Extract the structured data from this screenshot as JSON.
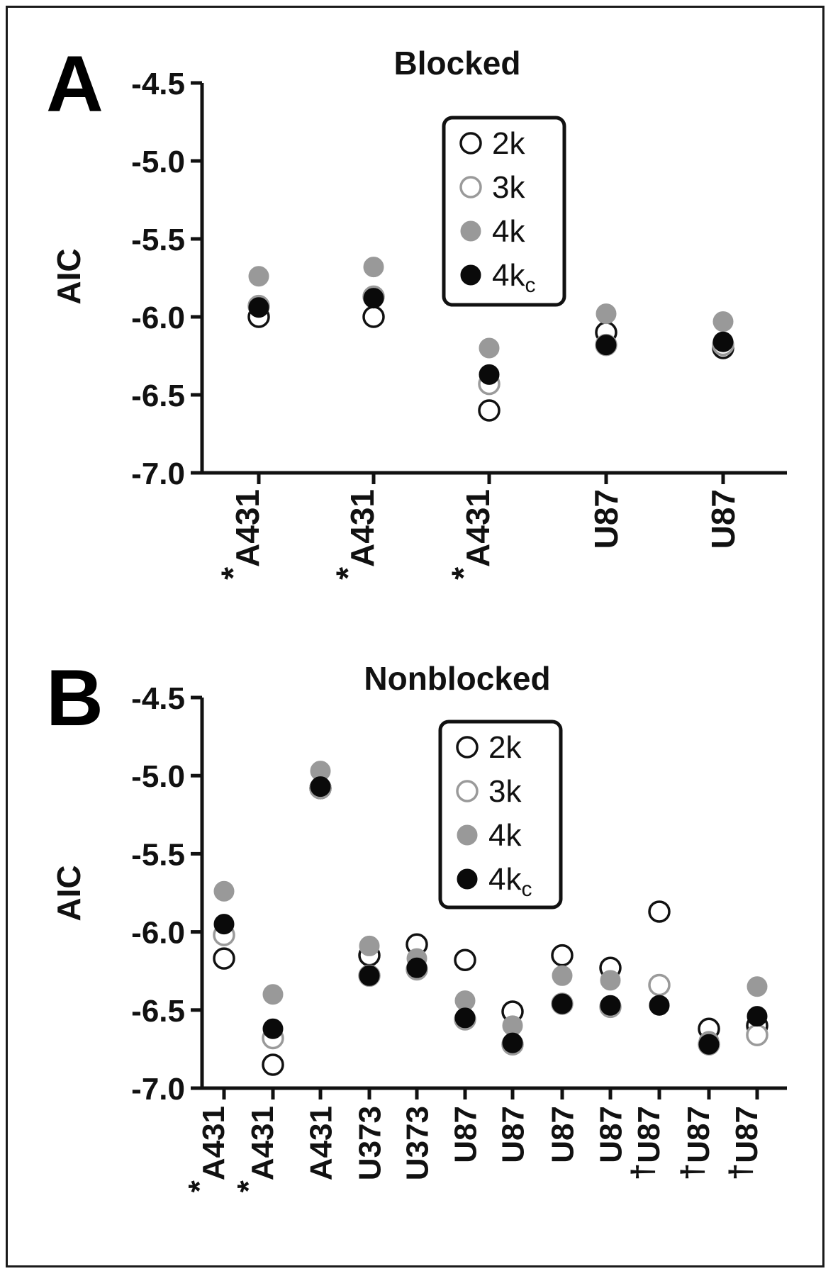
{
  "chart_data": [
    {
      "type": "scatter",
      "panel_label": "A",
      "title": "Blocked",
      "ylabel": "AIC",
      "ylim": [
        -7.0,
        -4.5
      ],
      "yticks": [
        -4.5,
        -5.0,
        -5.5,
        -6.0,
        -6.5,
        -7.0
      ],
      "ytick_labels": [
        "-4.5",
        "-5.0",
        "-5.5",
        "-6.0",
        "-6.5",
        "-7.0"
      ],
      "categories": [
        "A431",
        "A431",
        "A431",
        "U87",
        "U87"
      ],
      "category_markers": [
        "*",
        "*",
        "*",
        "",
        ""
      ],
      "legend": [
        "2k",
        "3k",
        "4k",
        "4kc"
      ],
      "legend_placement": "top-right",
      "series": [
        {
          "name": "2k",
          "style": "open-black",
          "values": [
            -6.0,
            -6.0,
            -6.6,
            -6.1,
            -6.2
          ]
        },
        {
          "name": "3k",
          "style": "open-gray",
          "values": [
            -5.93,
            -5.87,
            -6.43,
            -6.18,
            -6.18
          ]
        },
        {
          "name": "4k",
          "style": "filled-gray",
          "values": [
            -5.74,
            -5.68,
            -6.2,
            -5.98,
            -6.03
          ]
        },
        {
          "name": "4kc",
          "style": "filled-black",
          "values": [
            -5.94,
            -5.88,
            -6.37,
            -6.18,
            -6.16
          ]
        }
      ]
    },
    {
      "type": "scatter",
      "panel_label": "B",
      "title": "Nonblocked",
      "ylabel": "AIC",
      "ylim": [
        -7.0,
        -4.5
      ],
      "yticks": [
        -4.5,
        -5.0,
        -5.5,
        -6.0,
        -6.5,
        -7.0
      ],
      "ytick_labels": [
        "-4.5",
        "-5.0",
        "-5.5",
        "-6.0",
        "-6.5",
        "-7.0"
      ],
      "categories": [
        "A431",
        "A431",
        "A431",
        "U373",
        "U373",
        "U87",
        "U87",
        "U87",
        "U87",
        "U87",
        "U87",
        "U87"
      ],
      "category_markers": [
        "*",
        "*",
        "",
        "",
        "",
        "",
        "",
        "",
        "",
        "†",
        "†",
        "†"
      ],
      "legend": [
        "2k",
        "3k",
        "4k",
        "4kc"
      ],
      "legend_placement": "top-center",
      "series": [
        {
          "name": "2k",
          "style": "open-black",
          "values": [
            -6.17,
            -6.85,
            -5.08,
            -6.15,
            -6.08,
            -6.18,
            -6.51,
            -6.15,
            -6.23,
            -5.87,
            -6.62,
            -6.6
          ]
        },
        {
          "name": "3k",
          "style": "open-gray",
          "values": [
            -6.02,
            -6.68,
            -5.08,
            -6.28,
            -6.24,
            -6.56,
            -6.72,
            -6.46,
            -6.48,
            -6.34,
            -6.72,
            -6.66
          ]
        },
        {
          "name": "4k",
          "style": "filled-gray",
          "values": [
            -5.74,
            -6.4,
            -4.97,
            -6.09,
            -6.17,
            -6.44,
            -6.6,
            -6.28,
            -6.31,
            -6.47,
            -6.7,
            -6.35
          ]
        },
        {
          "name": "4kc",
          "style": "filled-black",
          "values": [
            -5.95,
            -6.62,
            -5.07,
            -6.28,
            -6.23,
            -6.55,
            -6.71,
            -6.46,
            -6.47,
            -6.47,
            -6.72,
            -6.54
          ]
        }
      ]
    }
  ]
}
